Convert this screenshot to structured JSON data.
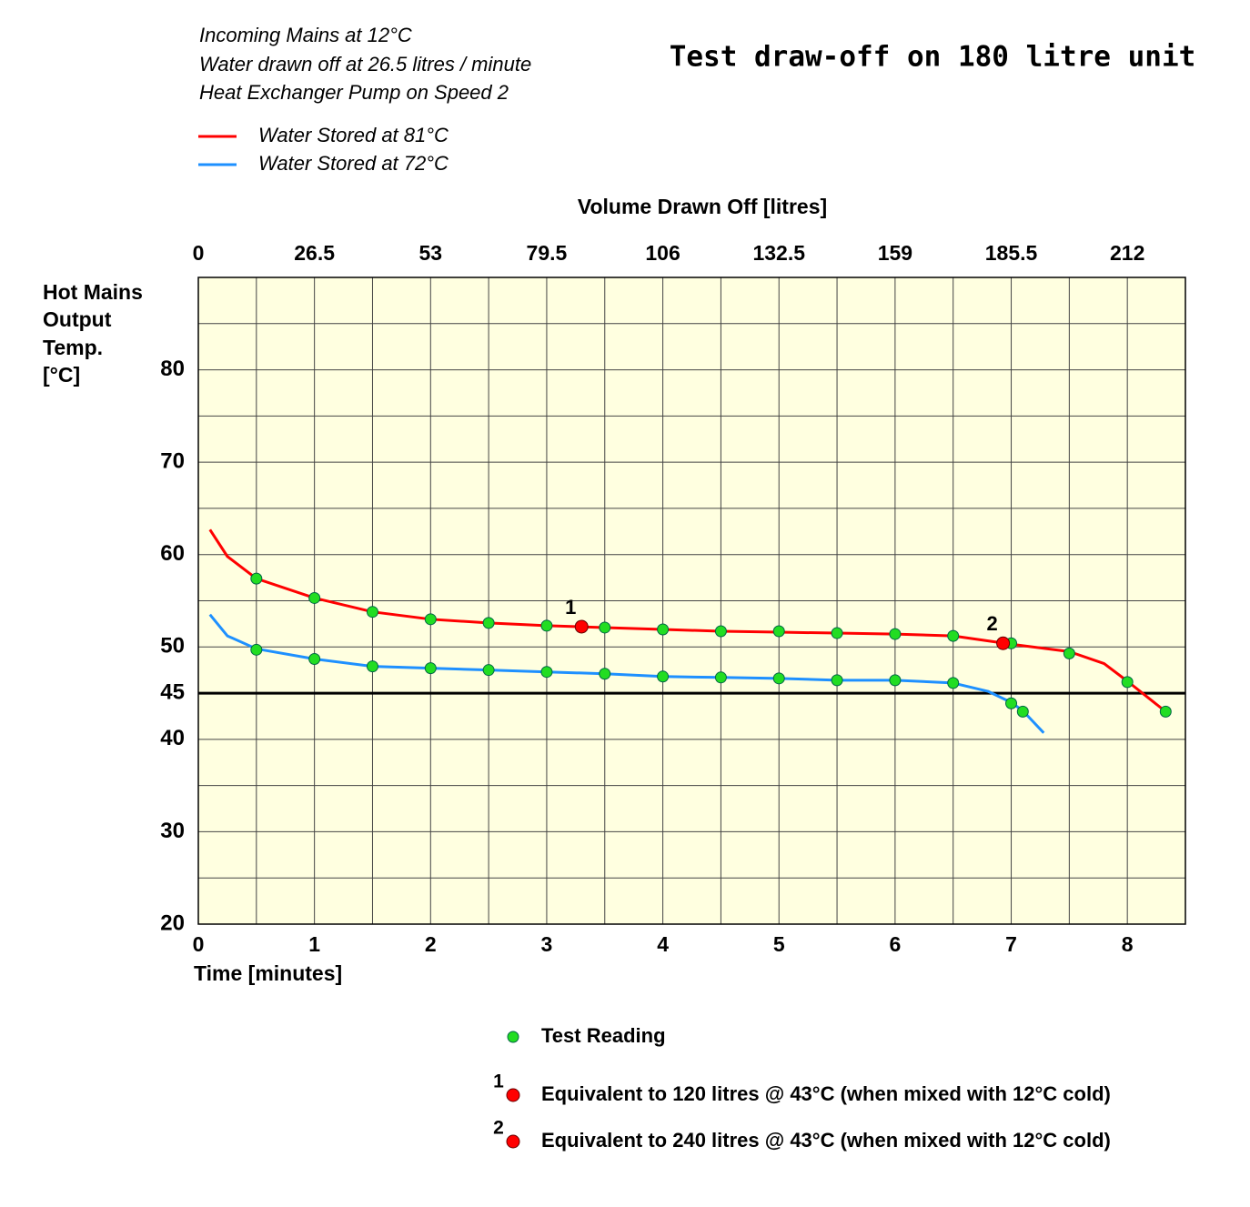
{
  "chart_data": {
    "type": "line",
    "title": "Test draw-off on 180 litre unit",
    "notes": [
      "Incoming Mains at 12°C",
      "Water drawn off at 26.5 litres / minute",
      "Heat Exchanger Pump on Speed 2"
    ],
    "xlabel": "Time [minutes]",
    "x2label": "Volume Drawn Off [litres]",
    "ylabel": [
      "Hot Mains",
      "Output",
      "Temp.",
      "[°C]"
    ],
    "xlim": [
      0,
      8.5
    ],
    "xticks": [
      0,
      1,
      2,
      3,
      4,
      5,
      6,
      7,
      8
    ],
    "xminor": [
      0.5,
      1.5,
      2.5,
      3.5,
      4.5,
      5.5,
      6.5,
      7.5,
      8.5
    ],
    "x2lim": [
      0,
      225.25
    ],
    "x2ticks": [
      0,
      26.5,
      53,
      79.5,
      106,
      132.5,
      159,
      185.5,
      212
    ],
    "ylim": [
      20,
      90
    ],
    "yticks": [
      20,
      30,
      40,
      50,
      60,
      70,
      80
    ],
    "yminor": [
      25,
      35,
      55,
      65,
      75,
      85
    ],
    "grid": true,
    "background": "#ffffe0",
    "threshold": {
      "value": 45,
      "color": "#ff0000"
    },
    "reading_color": "#22dd22",
    "series": [
      {
        "name": "Water Stored at 81°C",
        "color": "#ff0000",
        "x": [
          0.1,
          0.25,
          0.5,
          1,
          1.5,
          2,
          2.5,
          3,
          3.5,
          4,
          4.5,
          5,
          5.5,
          6,
          6.5,
          7,
          7.5,
          7.8,
          8,
          8.33
        ],
        "values": [
          62.7,
          59.8,
          57.4,
          55.3,
          53.8,
          53.0,
          52.6,
          52.3,
          52.1,
          51.9,
          51.7,
          51.6,
          51.5,
          51.4,
          51.2,
          50.3,
          49.5,
          48.2,
          46.3,
          43.0
        ],
        "readings": {
          "x": [
            0.5,
            1,
            1.5,
            2,
            2.5,
            3,
            3.5,
            4,
            4.5,
            5,
            5.5,
            6,
            6.5,
            7,
            7.5,
            8,
            8.33
          ],
          "values": [
            57.4,
            55.3,
            53.8,
            53.0,
            52.6,
            52.3,
            52.1,
            51.9,
            51.7,
            51.7,
            51.5,
            51.4,
            51.2,
            50.4,
            49.3,
            46.2,
            43.0
          ]
        }
      },
      {
        "name": "Water Stored at 72°C",
        "color": "#1e90ff",
        "x": [
          0.1,
          0.25,
          0.5,
          1,
          1.5,
          2,
          2.5,
          3,
          3.5,
          4,
          4.5,
          5,
          5.5,
          6,
          6.5,
          6.8,
          7,
          7.1,
          7.28
        ],
        "values": [
          53.5,
          51.2,
          49.8,
          48.7,
          47.9,
          47.7,
          47.5,
          47.3,
          47.1,
          46.8,
          46.7,
          46.6,
          46.4,
          46.4,
          46.1,
          45.2,
          44.0,
          43.1,
          40.7
        ],
        "readings": {
          "x": [
            0.5,
            1,
            1.5,
            2,
            2.5,
            3,
            3.5,
            4,
            4.5,
            5,
            5.5,
            6,
            6.5,
            7,
            7.1
          ],
          "values": [
            49.7,
            48.7,
            47.9,
            47.7,
            47.5,
            47.3,
            47.1,
            46.8,
            46.7,
            46.6,
            46.4,
            46.4,
            46.1,
            43.9,
            43.0
          ]
        }
      }
    ],
    "markers": [
      {
        "label": "1",
        "x": 3.3,
        "value": 52.2,
        "color": "#ff0000",
        "text": "Equivalent to 120 litres @ 43°C (when mixed with 12°C cold)"
      },
      {
        "label": "2",
        "x": 6.93,
        "value": 50.4,
        "color": "#ff0000",
        "text": "Equivalent to 240 litres @ 43°C (when mixed with 12°C cold)"
      }
    ],
    "reading_legend": "Test Reading"
  }
}
